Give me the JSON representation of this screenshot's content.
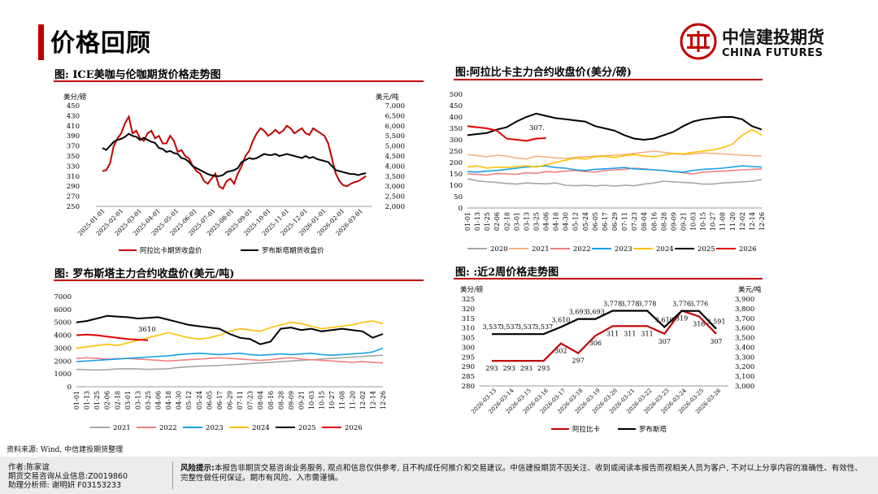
{
  "page": {
    "title": "价格回顾"
  },
  "brand": {
    "name_cn": "中信建投期货",
    "name_en": "CHINA FUTURES"
  },
  "panels": {
    "p1_title": "图: ICE美咖与伦咖期货价格走势图",
    "p2_title": "图:阿拉比卡主力合约收盘价(美分/磅)",
    "p3_title": "图: 罗布斯塔主力合约收盘价(美元/吨)",
    "p4_title": "图: :近2周价格走势图"
  },
  "source": "资料来源: Wind, 中信建投期货整理",
  "footer": {
    "author": "作者:陈家谊",
    "license": "期货交易咨询从业信息:Z0019860",
    "assistant": "助理分析师: 谢明妍 F03153233",
    "risk_label": "风险提示:",
    "risk_text": "本报告非期货交易咨询业务服务, 观点和信息仅供参考, 且不构成任何推介和交易建议。中信建投期货不因关注、收到或阅读本报告而视相关人员为客户, 不对以上分享内容的准确性、有效性、完整性做任何保证。期市有风险、入市需谨慎。"
  },
  "chart_data": [
    {
      "type": "line",
      "title": "图: ICE美咖与伦咖期货价格走势图",
      "ylabel_left": "美分/磅",
      "ylabel_right": "美元/吨",
      "ylim_left": [
        250,
        450
      ],
      "yticks_left": [
        "250",
        "270",
        "290",
        "310",
        "330",
        "350",
        "370",
        "390",
        "410",
        "430",
        "450"
      ],
      "ylim_right": [
        2000,
        7000
      ],
      "yticks_right": [
        "2,000",
        "2,500",
        "3,000",
        "3,500",
        "4,000",
        "4,500",
        "5,000",
        "5,500",
        "6,000",
        "6,500",
        "7,000"
      ],
      "x_labels": [
        "2025-01-01",
        "2025-02-01",
        "2025-03-01",
        "2025-04-01",
        "2025-05-01",
        "2025-06-01",
        "2025-07-01",
        "2025-08-01",
        "2025-09-01",
        "2025-10-01",
        "2025-11-01",
        "2025-12-01",
        "2026-01-01",
        "2026-02-01",
        "2026-03-01"
      ],
      "series": [
        {
          "name": "阿拉比卡期货收盘价",
          "axis": "left",
          "color": "#c00000",
          "values": [
            320,
            322,
            335,
            370,
            385,
            395,
            415,
            428,
            395,
            400,
            385,
            380,
            395,
            400,
            385,
            390,
            375,
            375,
            390,
            380,
            358,
            362,
            350,
            345,
            330,
            320,
            315,
            300,
            295,
            305,
            315,
            290,
            285,
            300,
            305,
            295,
            315,
            330,
            350,
            360,
            380,
            395,
            405,
            400,
            390,
            395,
            402,
            395,
            400,
            410,
            405,
            395,
            400,
            405,
            395,
            392,
            405,
            400,
            395,
            390,
            375,
            345,
            315,
            300,
            292,
            290,
            295,
            298,
            300,
            305,
            310
          ]
        },
        {
          "name": "罗布斯塔期货收盘价",
          "axis": "right",
          "color": "#000000",
          "values": [
            4900,
            4800,
            5000,
            5200,
            5300,
            5350,
            5450,
            5600,
            5500,
            5450,
            5300,
            5400,
            5300,
            5200,
            5150,
            4900,
            4850,
            4700,
            4750,
            4650,
            4600,
            4400,
            4350,
            4200,
            4000,
            3900,
            3800,
            3700,
            3600,
            3550,
            3500,
            3500,
            3550,
            3700,
            3750,
            3800,
            3900,
            4200,
            4300,
            4400,
            4350,
            4400,
            4500,
            4600,
            4550,
            4550,
            4600,
            4500,
            4550,
            4600,
            4550,
            4500,
            4450,
            4400,
            4500,
            4400,
            4450,
            4350,
            4300,
            4250,
            4200,
            4000,
            3800,
            3750,
            3700,
            3650,
            3600,
            3600,
            3550,
            3610,
            3650
          ]
        }
      ]
    },
    {
      "type": "line",
      "title": "图:阿拉比卡主力合约收盘价(美分/磅)",
      "ylim": [
        0,
        500
      ],
      "yticks": [
        "0",
        "50",
        "100",
        "150",
        "200",
        "250",
        "300",
        "350",
        "400",
        "450",
        "500"
      ],
      "x_labels": [
        "01-01",
        "01-13",
        "01-25",
        "02-06",
        "02-18",
        "03-01",
        "03-13",
        "03-25",
        "04-06",
        "04-18",
        "04-30",
        "05-12",
        "05-24",
        "06-05",
        "06-17",
        "06-29",
        "07-11",
        "07-23",
        "08-04",
        "08-16",
        "08-28",
        "09-09",
        "09-21",
        "10-03",
        "10-15",
        "10-27",
        "11-08",
        "11-20",
        "12-02",
        "12-14",
        "12-26"
      ],
      "annotation": "307.",
      "series": [
        {
          "name": "2020",
          "color": "#a6a6a6",
          "values": [
            128,
            120,
            115,
            112,
            108,
            105,
            110,
            108,
            106,
            110,
            100,
            98,
            100,
            97,
            100,
            96,
            100,
            98,
            105,
            110,
            118,
            115,
            112,
            110,
            105,
            105,
            110,
            112,
            115,
            118,
            125
          ]
        },
        {
          "name": "2021",
          "color": "#f4b183",
          "values": [
            235,
            230,
            225,
            232,
            228,
            220,
            215,
            228,
            225,
            220,
            218,
            222,
            225,
            228,
            230,
            232,
            235,
            240,
            245,
            250,
            245,
            240,
            235,
            238,
            242,
            240,
            238,
            235,
            232,
            230,
            228
          ]
        },
        {
          "name": "2022",
          "color": "#f08080",
          "values": [
            150,
            148,
            145,
            152,
            150,
            148,
            155,
            152,
            160,
            158,
            162,
            165,
            160,
            158,
            165,
            168,
            170,
            175,
            172,
            168,
            165,
            160,
            155,
            150,
            158,
            160,
            162,
            165,
            168,
            170,
            172
          ]
        },
        {
          "name": "2023",
          "color": "#1aa1e6",
          "values": [
            160,
            158,
            162,
            165,
            170,
            175,
            180,
            182,
            185,
            178,
            175,
            168,
            165,
            170,
            172,
            175,
            178,
            172,
            170,
            168,
            165,
            160,
            158,
            165,
            170,
            172,
            175,
            180,
            185,
            182,
            180
          ]
        },
        {
          "name": "2024",
          "color": "#ffc000",
          "values": [
            180,
            185,
            175,
            180,
            178,
            182,
            185,
            180,
            190,
            200,
            210,
            220,
            215,
            225,
            228,
            222,
            230,
            235,
            228,
            225,
            232,
            240,
            238,
            245,
            250,
            255,
            265,
            280,
            320,
            345,
            320
          ]
        },
        {
          "name": "2025",
          "color": "#000000",
          "values": [
            320,
            325,
            330,
            345,
            355,
            380,
            400,
            415,
            405,
            395,
            390,
            385,
            380,
            360,
            350,
            340,
            320,
            305,
            300,
            305,
            320,
            335,
            360,
            380,
            390,
            395,
            400,
            400,
            390,
            360,
            345
          ]
        },
        {
          "name": "2026",
          "color": "#e00000",
          "values": [
            360,
            355,
            350,
            340,
            305,
            300,
            295,
            305,
            307
          ]
        }
      ]
    },
    {
      "type": "line",
      "title": "图: 罗布斯塔主力合约收盘价(美元/吨)",
      "ylim": [
        0,
        7000
      ],
      "yticks": [
        "0",
        "1000",
        "2000",
        "3000",
        "4000",
        "5000",
        "6000",
        "7000"
      ],
      "x_labels": [
        "01-01",
        "01-13",
        "01-25",
        "02-06",
        "02-18",
        "03-01",
        "03-13",
        "03-25",
        "04-06",
        "04-18",
        "04-30",
        "05-12",
        "05-24",
        "06-05",
        "06-17",
        "06-29",
        "07-11",
        "07-23",
        "08-04",
        "08-16",
        "08-28",
        "09-09",
        "09-21",
        "10-03",
        "10-15",
        "10-27",
        "11-08",
        "11-20",
        "12-02",
        "12-14",
        "12-26"
      ],
      "annotation": "3610",
      "series": [
        {
          "name": "2021",
          "color": "#a6a6a6",
          "values": [
            1350,
            1320,
            1300,
            1330,
            1380,
            1400,
            1380,
            1350,
            1370,
            1400,
            1500,
            1550,
            1600,
            1620,
            1650,
            1700,
            1750,
            1800,
            1850,
            1900,
            1950,
            2000,
            2050,
            2100,
            2150,
            2200,
            2250,
            2300,
            2350,
            2400,
            2450
          ]
        },
        {
          "name": "2022",
          "color": "#f08080",
          "values": [
            2200,
            2250,
            2200,
            2150,
            2180,
            2200,
            2150,
            2100,
            2050,
            2000,
            2050,
            2100,
            2150,
            2200,
            2250,
            2200,
            2150,
            2100,
            2050,
            2100,
            2200,
            2250,
            2150,
            2100,
            2050,
            2000,
            1950,
            1900,
            1950,
            1900,
            1850
          ]
        },
        {
          "name": "2023",
          "color": "#1aa1e6",
          "values": [
            1950,
            2000,
            2050,
            2100,
            2150,
            2200,
            2250,
            2300,
            2350,
            2400,
            2500,
            2550,
            2600,
            2550,
            2500,
            2550,
            2600,
            2500,
            2450,
            2500,
            2550,
            2500,
            2550,
            2600,
            2500,
            2450,
            2500,
            2550,
            2600,
            2700,
            3000
          ]
        },
        {
          "name": "2024",
          "color": "#ffc000",
          "values": [
            3000,
            3100,
            3200,
            3300,
            3200,
            3400,
            3600,
            3800,
            4000,
            4200,
            4000,
            3800,
            3700,
            3800,
            4000,
            4300,
            4500,
            4400,
            4300,
            4600,
            4800,
            5000,
            4900,
            4700,
            4500,
            4600,
            4700,
            4800,
            5000,
            5100,
            4900
          ]
        },
        {
          "name": "2025",
          "color": "#000000",
          "values": [
            5000,
            5100,
            5300,
            5500,
            5450,
            5400,
            5300,
            5350,
            5400,
            5200,
            5000,
            4800,
            4700,
            4600,
            4500,
            4100,
            3800,
            3700,
            3300,
            3500,
            4500,
            4600,
            4400,
            4500,
            4300,
            4400,
            4500,
            4400,
            4300,
            3800,
            4100
          ]
        },
        {
          "name": "2026",
          "color": "#e00000",
          "values": [
            4000,
            4050,
            4000,
            3900,
            3800,
            3700,
            3650,
            3610
          ]
        }
      ]
    },
    {
      "type": "line",
      "title": "图: :近2周价格走势图",
      "ylabel_left": "美分/磅",
      "ylabel_right": "美元/吨",
      "ylim_left": [
        280,
        325
      ],
      "yticks_left": [
        "280",
        "285",
        "290",
        "295",
        "300",
        "305",
        "310",
        "315",
        "320",
        "325"
      ],
      "ylim_right": [
        3000,
        3900
      ],
      "yticks_right": [
        "3,000",
        "3,100",
        "3,200",
        "3,300",
        "3,400",
        "3,500",
        "3,600",
        "3,700",
        "3,800",
        "3,900"
      ],
      "categories": [
        "2026-03-13",
        "2026-03-14",
        "2026-03-15",
        "2026-03-16",
        "2026-03-17",
        "2026-03-18",
        "2026-03-19",
        "2026-03-20",
        "2026-03-21",
        "2026-03-22",
        "2026-03-23",
        "2026-03-24",
        "2026-03-25",
        "2026-03-26"
      ],
      "series": [
        {
          "name": "阿拉比卡",
          "axis": "left",
          "color": "#c00000",
          "values": [
            293,
            293,
            293,
            293,
            302,
            297,
            306,
            311,
            311,
            311,
            307,
            319,
            316,
            307
          ],
          "labels": [
            "293",
            "293",
            "293",
            "293",
            "302",
            "297",
            "306",
            "311",
            "311",
            "311",
            "307",
            "319",
            "316",
            "307"
          ]
        },
        {
          "name": "罗布斯塔",
          "axis": "right",
          "color": "#000000",
          "values": [
            3537,
            3537,
            3537,
            3537,
            3610,
            3693,
            3693,
            3778,
            3778,
            3778,
            3610,
            3776,
            3776,
            3591
          ],
          "labels": [
            "3,537",
            "3,537",
            "3,537",
            "3,537",
            "3,610",
            "3,693",
            "3,693",
            "3,778",
            "3,778",
            "3,778",
            "3,610",
            "3,776",
            "3,776",
            "3,591"
          ]
        }
      ]
    }
  ]
}
